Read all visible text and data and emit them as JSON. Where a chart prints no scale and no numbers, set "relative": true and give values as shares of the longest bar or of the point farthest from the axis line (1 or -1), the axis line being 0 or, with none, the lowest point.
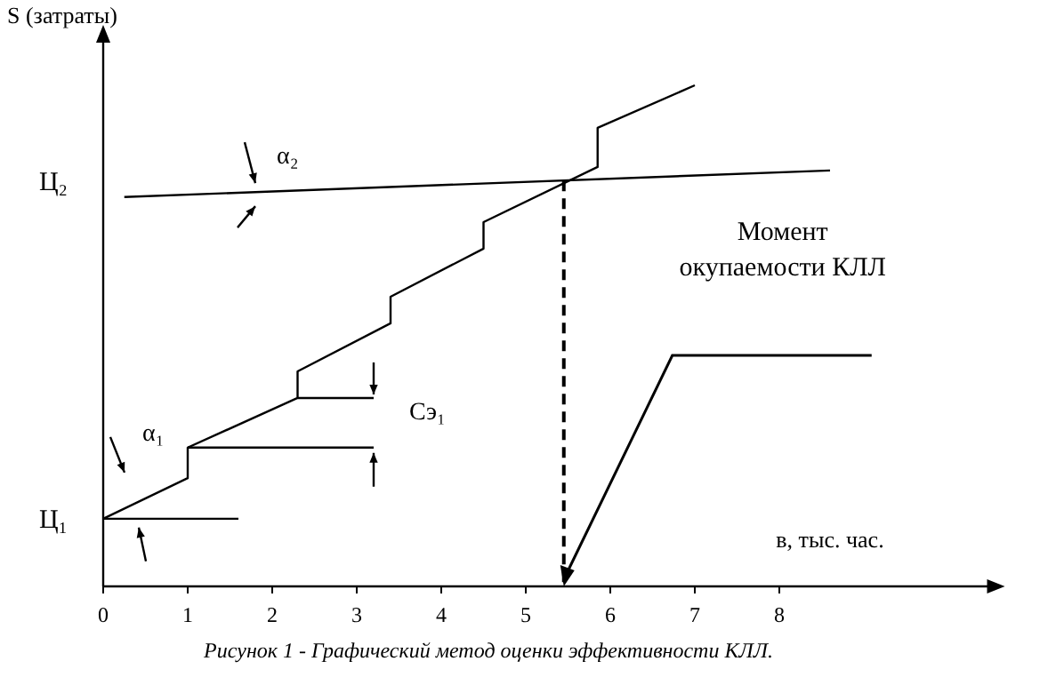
{
  "chart_data": {
    "type": "line",
    "relative": true,
    "xlabel": "в, тыс. час.",
    "ylabel": "S (затраты)",
    "xlim": [
      0,
      10.5
    ],
    "xticks": [
      0,
      1,
      2,
      3,
      4,
      5,
      6,
      7,
      8
    ],
    "series": [
      {
        "color": "#000000",
        "x": [
          0,
          1,
          1,
          2.3,
          2.3,
          3.4,
          3.4,
          4.5,
          4.5,
          5.85,
          5.85,
          7
        ],
        "values": [
          0.135,
          0.216,
          0.277,
          0.376,
          0.429,
          0.525,
          0.578,
          0.674,
          0.727,
          0.837,
          0.915,
          1
        ]
      },
      {
        "color": "#000000",
        "x": [
          0.25,
          8.6
        ],
        "values": [
          0.777,
          0.83
        ]
      },
      {
        "color": "#000000",
        "x": [
          0,
          1.6
        ],
        "values": [
          0.135,
          0.135
        ]
      },
      {
        "color": "#000000",
        "x": [
          1,
          3.2
        ],
        "values": [
          0.277,
          0.277
        ]
      },
      {
        "color": "#000000",
        "x": [
          2.3,
          3.2
        ],
        "values": [
          0.376,
          0.376
        ]
      }
    ],
    "ref_lines": [
      {
        "axis": "x",
        "value": 5.45,
        "color": "#000000",
        "line_style": "dashed"
      }
    ],
    "annotations": [
      "Ц₁",
      "Ц₂",
      "α₁",
      {
        "text": "α₂",
        "x": 1.8,
        "y": 0.787
      },
      {
        "text": "Сэ₁",
        "x": 3.2,
        "y": 0.376
      },
      "Момент окупаемости КЛЛ",
      "Рисунок 1 - Графический метод оценки эффективности КЛЛ."
    ],
    "grid": false,
    "marker": "none",
    "line_style": "solid"
  }
}
